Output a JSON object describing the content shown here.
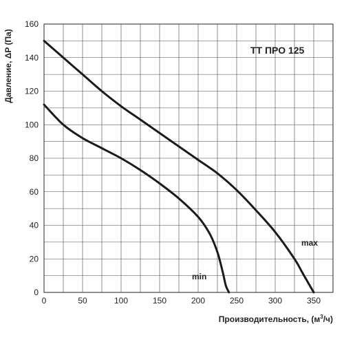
{
  "chart_data": {
    "type": "line",
    "title": "",
    "annotation": "ТТ ПРО 125",
    "xlabel_text": "Производительность, (м",
    "xlabel_sup": "3",
    "xlabel_end": "/ч)",
    "ylabel": "Давление, ΔP (Па)",
    "xlim": [
      0,
      375
    ],
    "ylim": [
      0,
      160
    ],
    "xticks": [
      0,
      50,
      100,
      150,
      200,
      250,
      300,
      350
    ],
    "yticks": [
      0,
      20,
      40,
      60,
      80,
      100,
      120,
      140,
      160
    ],
    "grid": true,
    "series": [
      {
        "name": "max",
        "x": [
          0,
          25,
          50,
          75,
          100,
          125,
          150,
          175,
          200,
          225,
          250,
          275,
          300,
          325,
          335,
          345,
          350
        ],
        "y": [
          150,
          140,
          130,
          120,
          111,
          103,
          95,
          87,
          79,
          71,
          61,
          49,
          36,
          20,
          12,
          4,
          0
        ]
      },
      {
        "name": "min",
        "x": [
          0,
          25,
          50,
          75,
          100,
          125,
          150,
          175,
          200,
          215,
          225,
          232,
          236,
          240
        ],
        "y": [
          112,
          100,
          92,
          86,
          80,
          73,
          65,
          56,
          45,
          35,
          24,
          12,
          4,
          0
        ]
      }
    ]
  }
}
